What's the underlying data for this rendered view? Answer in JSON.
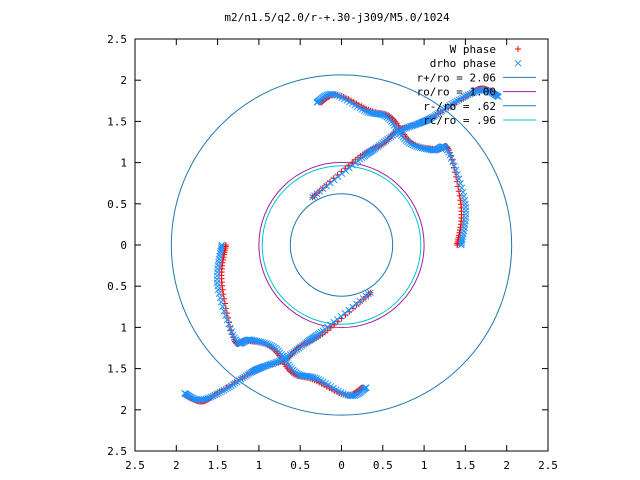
{
  "chart_data": {
    "type": "scatter",
    "title": "m2/n1.5/q2.0/r-+.30-j309/M5.0/1024",
    "xlim": [
      -2.5,
      2.5
    ],
    "ylim": [
      -2.5,
      2.5
    ],
    "x_ticks": [
      -2.5,
      -2,
      -1.5,
      -1,
      -0.5,
      0,
      0.5,
      1,
      1.5,
      2,
      2.5
    ],
    "y_ticks": [
      -2.5,
      -2,
      -1.5,
      -1,
      -0.5,
      0,
      0.5,
      1,
      1.5,
      2,
      2.5
    ],
    "x_tick_labels": [
      "2.5",
      "2",
      "1.5",
      "1",
      "0.5",
      "0",
      "0.5",
      "1",
      "1.5",
      "2",
      "2.5"
    ],
    "y_tick_labels": [
      "2.5",
      "2",
      "1.5",
      "1",
      "0.5",
      "0",
      "0.5",
      "1",
      "1.5",
      "2",
      "2.5"
    ],
    "grid": false,
    "legend_position": "top-right",
    "series": [
      {
        "name": "W phase",
        "kind": "points",
        "marker": "plus",
        "color": "#ff0000",
        "arcs": [
          {
            "r": [
              1.85,
              1.6
            ],
            "theta": [
              105,
              35
            ],
            "nodes": [
              [
                1.89,
                1.82
              ],
              [
                1.7,
                1.9
              ],
              [
                1.5,
                1.8
              ],
              [
                1.1,
                1.55
              ],
              [
                1.0,
                1.49
              ],
              [
                0.7,
                1.4
              ],
              [
                0.5,
                1.23
              ],
              [
                0.2,
                1.06
              ],
              [
                -0.35,
                0.58
              ]
            ]
          },
          {
            "r": [
              1.6,
              1.85
            ],
            "theta": [
              179,
              221
            ],
            "nodes": [
              [
                -1.4,
                0.0
              ],
              [
                -1.45,
                -0.45
              ],
              [
                -1.3,
                -1.15
              ],
              [
                -1.16,
                -1.16
              ],
              [
                -0.85,
                -1.24
              ],
              [
                -0.6,
                -1.55
              ],
              [
                -0.35,
                -1.63
              ],
              [
                0.05,
                -1.82
              ],
              [
                0.25,
                -1.73
              ]
            ]
          }
        ]
      },
      {
        "name": "drho phase",
        "kind": "points",
        "marker": "cross",
        "color": "#1e90ff",
        "arcs": [
          {
            "r": [
              1.85,
              1.6
            ],
            "theta": [
              100,
              30
            ],
            "nodes": [
              [
                1.9,
                1.8
              ],
              [
                1.7,
                1.88
              ],
              [
                1.4,
                1.75
              ],
              [
                1.1,
                1.55
              ],
              [
                0.95,
                1.48
              ],
              [
                0.7,
                1.38
              ],
              [
                0.42,
                1.18
              ],
              [
                0.2,
                1.02
              ],
              [
                -0.35,
                0.58
              ]
            ]
          },
          {
            "r": [
              1.6,
              1.85
            ],
            "theta": [
              180,
              225
            ],
            "nodes": [
              [
                -1.45,
                0.0
              ],
              [
                -1.5,
                -0.5
              ],
              [
                -1.28,
                -1.15
              ],
              [
                -1.1,
                -1.15
              ],
              [
                -0.8,
                -1.25
              ],
              [
                -0.55,
                -1.55
              ],
              [
                -0.3,
                -1.62
              ],
              [
                0.1,
                -1.83
              ],
              [
                0.3,
                -1.73
              ]
            ]
          }
        ]
      },
      {
        "name": "r+/ro = 2.06",
        "kind": "circle",
        "radius": 2.06,
        "color": "#1f78b4"
      },
      {
        "name": "ro/ro = 1.00",
        "kind": "circle",
        "radius": 1.0,
        "color": "#a020a0"
      },
      {
        "name": "r-/ro = .62",
        "kind": "circle",
        "radius": 0.62,
        "color": "#1f78b4"
      },
      {
        "name": "rc/ro = .96",
        "kind": "circle",
        "radius": 0.96,
        "color": "#00c8c8"
      }
    ]
  }
}
